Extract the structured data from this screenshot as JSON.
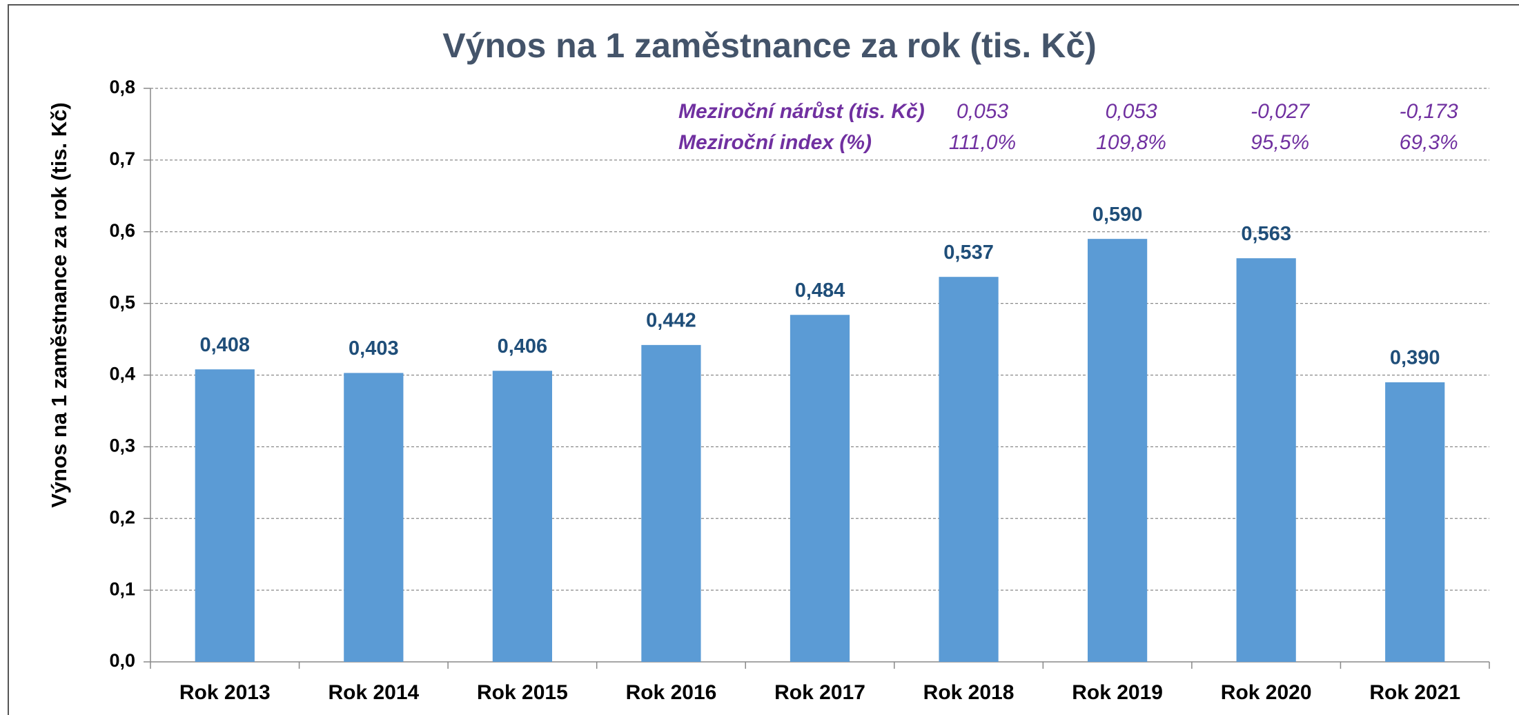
{
  "chart_data": {
    "type": "bar",
    "title": "Výnos na 1 zaměstnance za rok (tis. Kč)",
    "y_label": "Výnos na 1 zaměstnance za rok (tis. Kč)",
    "categories": [
      "Rok 2013",
      "Rok 2014",
      "Rok 2015",
      "Rok 2016",
      "Rok 2017",
      "Rok 2018",
      "Rok 2019",
      "Rok 2020",
      "Rok 2021"
    ],
    "values": [
      0.408,
      0.403,
      0.406,
      0.442,
      0.484,
      0.537,
      0.59,
      0.563,
      0.39
    ],
    "value_labels": [
      "0,408",
      "0,403",
      "0,406",
      "0,442",
      "0,484",
      "0,537",
      "0,590",
      "0,563",
      "0,390"
    ],
    "color": "#5b9bd5",
    "ylim": [
      0,
      0.8
    ],
    "yticks": [
      {
        "value": 0,
        "label": "0,0"
      },
      {
        "value": 0.1,
        "label": "0,1"
      },
      {
        "value": 0.2,
        "label": "0,2"
      },
      {
        "value": 0.3,
        "label": "0,3"
      },
      {
        "value": 0.4,
        "label": "0,4"
      },
      {
        "value": 0.5,
        "label": "0,5"
      },
      {
        "value": 0.6,
        "label": "0,6"
      },
      {
        "value": 0.7,
        "label": "0,7"
      },
      {
        "value": 0.8,
        "label": "0,8"
      }
    ],
    "grid": true,
    "annotations": [
      {
        "label": "Meziroční nárůst (tis. Kč)",
        "items": [
          "0,053",
          "0,053",
          "-0,027",
          "-0,173"
        ]
      },
      {
        "label": "Meziroční index (%)",
        "items": [
          "111,0%",
          "109,8%",
          "95,5%",
          "69,3%"
        ]
      }
    ]
  }
}
